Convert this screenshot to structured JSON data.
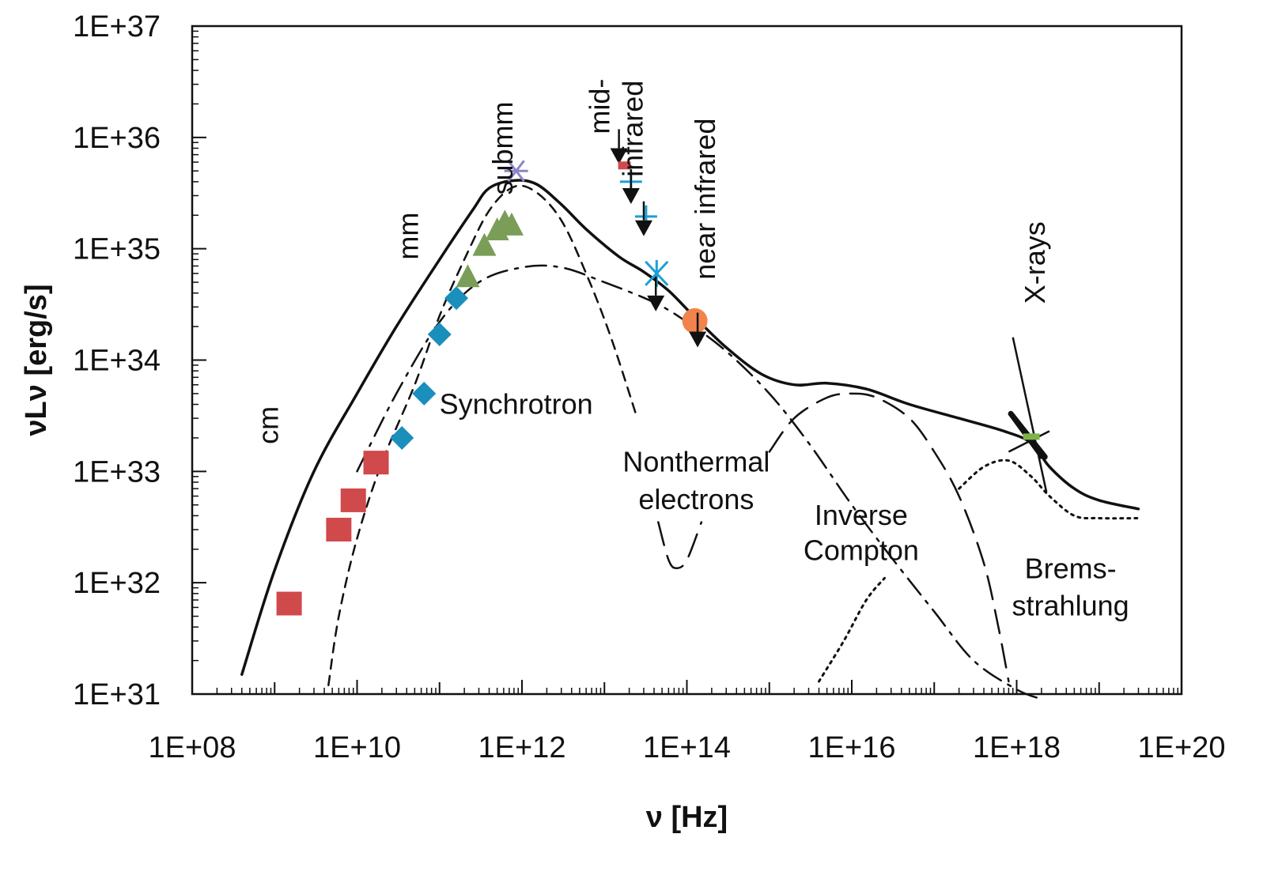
{
  "chart_data": {
    "type": "scatter",
    "title": "",
    "xlabel": "ν [Hz]",
    "ylabel": "νLν [erg/s]",
    "x_scale": "log",
    "y_scale": "log",
    "xlim": [
      100000000.0,
      1e+20
    ],
    "ylim": [
      1e+31,
      1e+37
    ],
    "grid": false,
    "x_ticks": [
      {
        "value": 100000000.0,
        "label": "1E+08"
      },
      {
        "value": 10000000000.0,
        "label": "1E+10"
      },
      {
        "value": 1000000000000.0,
        "label": "1E+12"
      },
      {
        "value": 100000000000000.0,
        "label": "1E+14"
      },
      {
        "value": 1e+16,
        "label": "1E+16"
      },
      {
        "value": 1e+18,
        "label": "1E+18"
      },
      {
        "value": 1e+20,
        "label": "1E+20"
      }
    ],
    "y_ticks": [
      {
        "value": 1e+31,
        "label": "1E+31"
      },
      {
        "value": 1e+32,
        "label": "1E+32"
      },
      {
        "value": 1e+33,
        "label": "1E+33"
      },
      {
        "value": 1e+34,
        "label": "1E+34"
      },
      {
        "value": 1e+35,
        "label": "1E+35"
      },
      {
        "value": 1e+36,
        "label": "1E+36"
      },
      {
        "value": 1e+37,
        "label": "1E+37"
      }
    ],
    "band_labels": [
      {
        "text": "cm",
        "x": 1100000000.0,
        "y": 2.6e+33,
        "rotate": true
      },
      {
        "text": "mm",
        "x": 55000000000.0,
        "y": 1.3e+35,
        "rotate": true
      },
      {
        "text": "submm",
        "x": 770000000000.0,
        "y": 8e+35,
        "rotate": true
      },
      {
        "text": "mid-",
        "x": 11500000000000.0,
        "y": 1.9e+36,
        "rotate": true
      },
      {
        "text": "infrared",
        "x": 29000000000000.0,
        "y": 1.2e+36,
        "rotate": true
      },
      {
        "text": "near infrared",
        "x": 220000000000000.0,
        "y": 2.8e+35,
        "rotate": true
      },
      {
        "text": "X-rays",
        "x": 2.2e+18,
        "y": 7.5e+34,
        "rotate": true
      }
    ],
    "component_labels": [
      {
        "text": "Synchrotron",
        "x": 850000000000.0,
        "y": 3.3e+33
      },
      {
        "text": "Nonthermal",
        "x": 130000000000000.0,
        "y": 1e+33
      },
      {
        "text": "electrons",
        "x": 130000000000000.0,
        "y": 4.6e+32
      },
      {
        "text": "Inverse",
        "x": 1.3e+16,
        "y": 3.3e+32
      },
      {
        "text": "Compton",
        "x": 1.3e+16,
        "y": 1.6e+32
      },
      {
        "text": "Brems-",
        "x": 4.5e+18,
        "y": 1.1e+32
      },
      {
        "text": "strahlung",
        "x": 4.5e+18,
        "y": 5.1e+31
      }
    ],
    "series": [
      {
        "name": "cm (squares)",
        "marker": "square",
        "color": "#d0494b",
        "points": [
          [
            1500000000.0,
            6.5e+31
          ],
          [
            6000000000.0,
            3e+32
          ],
          [
            9000000000.0,
            5.5e+32
          ],
          [
            17000000000.0,
            1.2e+33
          ]
        ]
      },
      {
        "name": "mm (diamonds)",
        "marker": "diamond",
        "color": "#1a8fbb",
        "points": [
          [
            35000000000.0,
            2e+33
          ],
          [
            65000000000.0,
            5e+33
          ],
          [
            100000000000.0,
            1.7e+34
          ],
          [
            160000000000.0,
            3.6e+34
          ]
        ]
      },
      {
        "name": "submm (triangles)",
        "marker": "triangle",
        "color": "#7a9e58",
        "points": [
          [
            220000000000.0,
            5.5e+34
          ],
          [
            350000000000.0,
            1.05e+35
          ],
          [
            500000000000.0,
            1.45e+35
          ],
          [
            620000000000.0,
            1.7e+35
          ],
          [
            750000000000.0,
            1.6e+35
          ]
        ]
      },
      {
        "name": "submm (asterisk)",
        "marker": "asterisk",
        "color": "#8a86c6",
        "points": [
          [
            850000000000.0,
            5e+35
          ]
        ]
      },
      {
        "name": "mid-infrared (plus)",
        "marker": "plus",
        "color": "#1aa0d6",
        "points": [
          [
            21000000000000.0,
            4e+35
          ],
          [
            32000000000000.0,
            1.95e+35
          ]
        ]
      },
      {
        "name": "mid-infrared (cross)",
        "marker": "x",
        "color": "#1aa0d6",
        "points": [
          [
            43000000000000.0,
            6e+34
          ]
        ]
      },
      {
        "name": "near infrared (circle)",
        "marker": "circle",
        "color": "#f0844c",
        "points": [
          [
            125000000000000.0,
            2.25e+34
          ]
        ]
      },
      {
        "name": "upper limits",
        "marker": "arrow-down",
        "color": "#111111",
        "points": [
          [
            15000000000000.0,
            8e+35
          ],
          [
            21000000000000.0,
            3.5e+35
          ],
          [
            30000000000000.0,
            1.8e+35
          ],
          [
            42000000000000.0,
            3.8e+34
          ],
          [
            135000000000000.0,
            1.8e+34
          ]
        ]
      },
      {
        "name": "mid-infrared (bar)",
        "marker": "small-rect",
        "color": "#d0494b",
        "points": [
          [
            17500000000000.0,
            5.6e+35
          ]
        ]
      }
    ],
    "curves": [
      {
        "name": "Total",
        "style": "solid",
        "width": 3.5,
        "points": [
          [
            400000000.0,
            1.5e+31
          ],
          [
            1000000000.0,
            1.3e+32
          ],
          [
            3000000000.0,
            1e+33
          ],
          [
            10000000000.0,
            5e+33
          ],
          [
            30000000000.0,
            2e+34
          ],
          [
            100000000000.0,
            8e+34
          ],
          [
            250000000000.0,
            2.2e+35
          ],
          [
            400000000000.0,
            3.5e+35
          ],
          [
            800000000000.0,
            4.1e+35
          ],
          [
            1500000000000.0,
            3.8e+35
          ],
          [
            3000000000000.0,
            2.5e+35
          ],
          [
            6000000000000.0,
            1.5e+35
          ],
          [
            15000000000000.0,
            8.5e+34
          ],
          [
            30000000000000.0,
            6.2e+34
          ],
          [
            60000000000000.0,
            4.2e+34
          ],
          [
            120000000000000.0,
            2.5e+34
          ],
          [
            300000000000000.0,
            1.3e+34
          ],
          [
            800000000000000.0,
            7.5e+33
          ],
          [
            2000000000000000.0,
            6e+33
          ],
          [
            5000000000000000.0,
            6.2e+33
          ],
          [
            1.5e+16,
            5.5e+33
          ],
          [
            5e+16,
            4e+33
          ],
          [
            2e+17,
            3e+33
          ],
          [
            7e+17,
            2.3e+33
          ],
          [
            1.5e+18,
            1.8e+33
          ],
          [
            2.5e+18,
            1.1e+33
          ],
          [
            5e+18,
            7e+32
          ],
          [
            1e+19,
            5.5e+32
          ],
          [
            3e+19,
            4.6e+32
          ]
        ]
      },
      {
        "name": "Synchrotron",
        "style": "dash-short",
        "width": 2.5,
        "points": [
          [
            4500000000.0,
            1.2e+31
          ],
          [
            6000000000.0,
            5e+31
          ],
          [
            10000000000.0,
            2.5e+32
          ],
          [
            20000000000.0,
            1.2e+33
          ],
          [
            50000000000.0,
            6e+33
          ],
          [
            100000000000.0,
            2.5e+34
          ],
          [
            200000000000.0,
            8e+34
          ],
          [
            400000000000.0,
            2.2e+35
          ],
          [
            800000000000.0,
            3.6e+35
          ],
          [
            1500000000000.0,
            3.2e+35
          ],
          [
            3000000000000.0,
            1.8e+35
          ],
          [
            6000000000000.0,
            6e+34
          ],
          [
            12000000000000.0,
            1.6e+34
          ],
          [
            25000000000000.0,
            3e+33
          ]
        ]
      },
      {
        "name": "Nonthermal electrons",
        "style": "dash-dot",
        "width": 2.5,
        "points": [
          [
            10000000000.0,
            1e+33
          ],
          [
            30000000000.0,
            5e+33
          ],
          [
            100000000000.0,
            2.2e+34
          ],
          [
            300000000000.0,
            5e+34
          ],
          [
            1000000000000.0,
            6.8e+34
          ],
          [
            3000000000000.0,
            6.8e+34
          ],
          [
            10000000000000.0,
            5e+34
          ],
          [
            40000000000000.0,
            3.3e+34
          ],
          [
            100000000000000.0,
            2.2e+34
          ],
          [
            300000000000000.0,
            1.2e+34
          ],
          [
            1000000000000000.0,
            5e+33
          ],
          [
            3000000000000000.0,
            1.8e+33
          ],
          [
            1e+16,
            5e+32
          ],
          [
            3e+16,
            1.7e+32
          ],
          [
            1e+17,
            5.5e+31
          ],
          [
            3e+17,
            2e+31
          ],
          [
            1e+18,
            1.1e+31
          ],
          [
            2e+18,
            9e+30
          ]
        ]
      },
      {
        "name": "Nonthermal electrons (dip)",
        "style": "dash-long",
        "width": 2.5,
        "points": [
          [
            45000000000000.0,
            3.5e+32
          ],
          [
            60000000000000.0,
            1.6e+32
          ],
          [
            75000000000000.0,
            1.35e+32
          ],
          [
            100000000000000.0,
            1.6e+32
          ],
          [
            150000000000000.0,
            3.5e+32
          ]
        ]
      },
      {
        "name": "Inverse Compton",
        "style": "dash-long",
        "width": 2.5,
        "points": [
          [
            1000000000000000.0,
            1.5e+33
          ],
          [
            2000000000000000.0,
            3e+33
          ],
          [
            5000000000000000.0,
            4.6e+33
          ],
          [
            1e+16,
            5e+33
          ],
          [
            2e+16,
            4.6e+33
          ],
          [
            5e+16,
            3e+33
          ],
          [
            1e+17,
            1.5e+33
          ],
          [
            2e+17,
            6e+32
          ],
          [
            4e+17,
            1.5e+32
          ],
          [
            6e+17,
            4e+31
          ],
          [
            8e+17,
            1.3e+31
          ]
        ]
      },
      {
        "name": "Bremsstrahlung",
        "style": "dotted",
        "width": 3,
        "points": [
          [
            4000000000000000.0,
            1.3e+31
          ],
          [
            8000000000000000.0,
            3e+31
          ],
          [
            1.5e+16,
            7e+31
          ],
          [
            2.5e+16,
            1.1e+32
          ]
        ]
      },
      {
        "name": "Bremsstrahlung (high)",
        "style": "dotted",
        "width": 3,
        "points": [
          [
            2e+17,
            7e+32
          ],
          [
            4e+17,
            1.1e+33
          ],
          [
            8e+17,
            1.25e+33
          ],
          [
            1.5e+18,
            9e+32
          ],
          [
            2.5e+18,
            6e+32
          ],
          [
            5e+18,
            4e+32
          ],
          [
            1e+19,
            3.8e+32
          ],
          [
            3e+19,
            3.8e+32
          ]
        ]
      }
    ],
    "xray_bowtie": {
      "color": "#7fb24a",
      "segments": [
        [
          [
            9e+17,
            1.6e+34
          ],
          [
            2.3e+18,
            6.5e+32
          ]
        ],
        [
          [
            8e+17,
            3.3e+33
          ],
          [
            2e+18,
            1.3e+33
          ]
        ],
        [
          [
            8e+17,
            1.5e+33
          ],
          [
            2.5e+18,
            2.3e+33
          ]
        ]
      ],
      "thick_segment": [
        [
          8.5e+17,
          3.3e+33
        ],
        [
          2.2e+18,
          1.35e+33
        ]
      ],
      "green_bar": [
        [
          1.2e+18,
          2.05e+33
        ],
        [
          1.9e+18,
          2.05e+33
        ]
      ]
    }
  }
}
